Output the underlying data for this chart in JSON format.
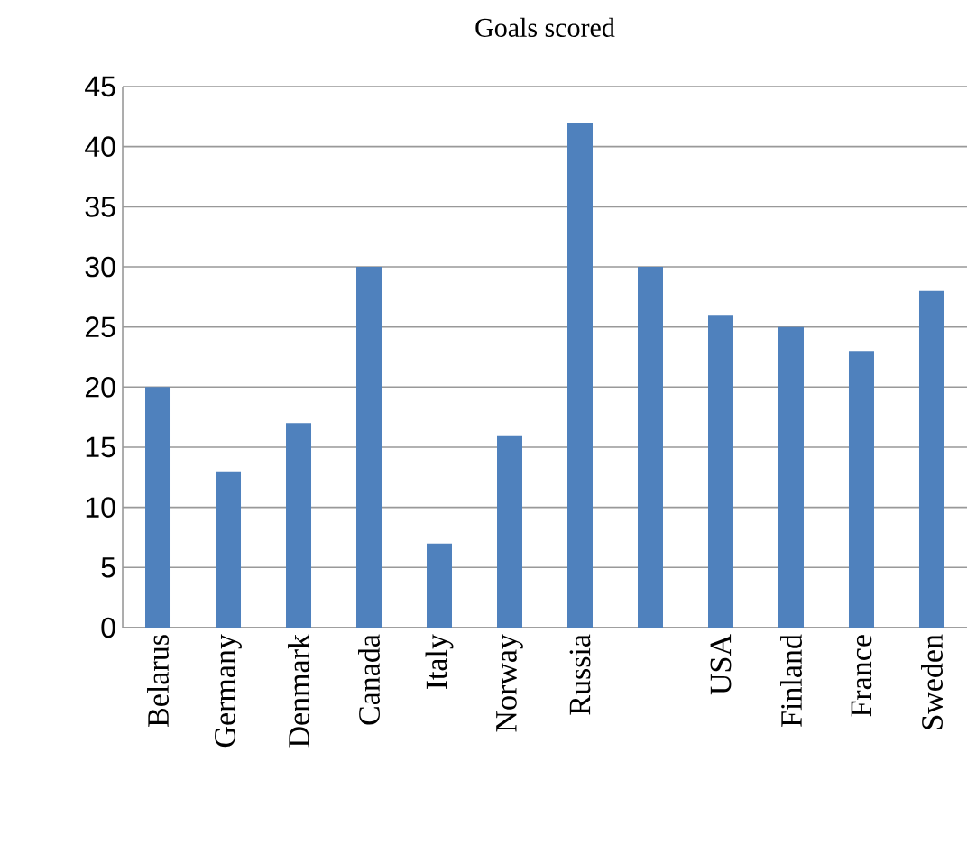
{
  "chart_data": {
    "type": "bar",
    "title": "Goals scored",
    "categories": [
      "Belarus",
      "Germany",
      "Denmark",
      "Canada",
      "Italy",
      "Norway",
      "Russia",
      null,
      "USA",
      "Finland",
      "France",
      "Sweden"
    ],
    "values": [
      20,
      13,
      17,
      30,
      7,
      16,
      42,
      30,
      26,
      25,
      23,
      28
    ],
    "color": "#4f81bd",
    "ylim": [
      0,
      45
    ],
    "yticks": [
      0,
      5,
      10,
      15,
      20,
      25,
      30,
      35,
      40,
      45
    ],
    "grid": "y"
  }
}
